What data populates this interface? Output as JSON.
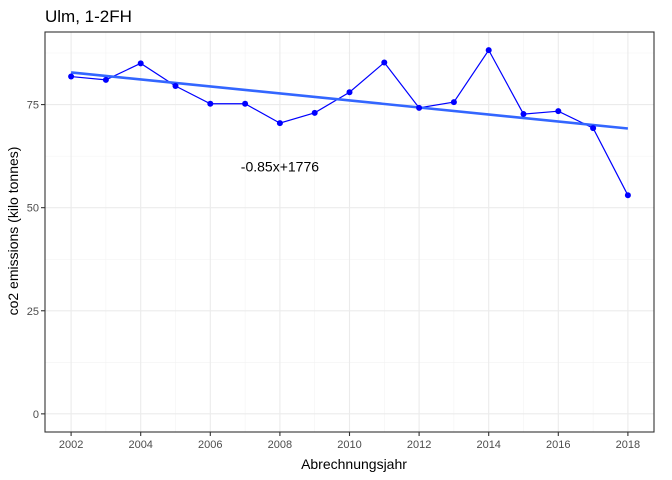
{
  "chart_data": {
    "type": "line",
    "title": "Ulm, 1-2FH",
    "xlabel": "Abrechnungsjahr",
    "ylabel": "co2 emissions (kilo tonnes)",
    "x": [
      2002,
      2003,
      2004,
      2005,
      2006,
      2007,
      2008,
      2009,
      2010,
      2011,
      2012,
      2013,
      2014,
      2015,
      2016,
      2017,
      2018
    ],
    "series": [
      {
        "values": [
          81.8,
          81.0,
          85.0,
          79.5,
          75.2,
          75.2,
          70.5,
          73.0,
          78.0,
          85.2,
          74.2,
          75.6,
          88.2,
          72.7,
          73.4,
          69.3,
          53.0
        ],
        "color": "#0000ff"
      }
    ],
    "trendline": {
      "x": [
        2002,
        2018
      ],
      "y": [
        82.8,
        69.2
      ],
      "color": "#3366ff"
    },
    "annotation": {
      "text": "-0.85x+1776",
      "x": 2008,
      "y": 60
    },
    "xlim": [
      2001.25,
      2018.75
    ],
    "ylim": [
      -4.4,
      92.6
    ],
    "xticks": [
      2002,
      2004,
      2006,
      2008,
      2010,
      2012,
      2014,
      2016,
      2018
    ],
    "yticks": [
      0,
      25,
      50,
      75
    ],
    "grid": true,
    "legend": "none"
  }
}
